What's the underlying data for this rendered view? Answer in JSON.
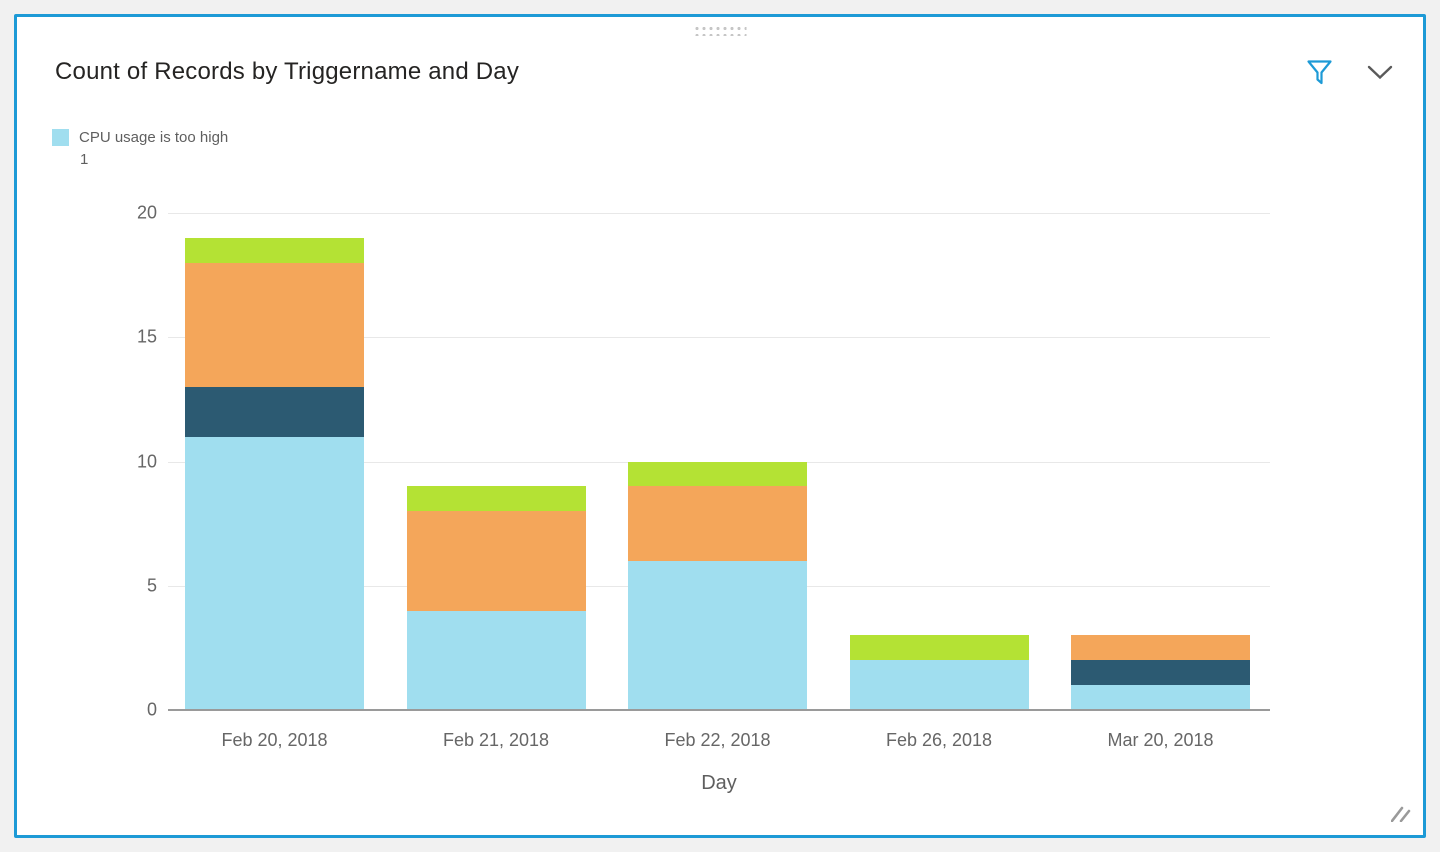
{
  "tile": {
    "title": "Count of Records by Triggername and Day",
    "border_color": "#1d9ad6"
  },
  "header_icons": {
    "filter_icon_color": "#1d9ad6",
    "chevron_icon_color": "#5a5a5a"
  },
  "legend": {
    "items": [
      {
        "label": "CPU usage is too high",
        "color": "#a0deef"
      }
    ],
    "overflow_text": "1"
  },
  "chart_data": {
    "type": "bar",
    "stacked": true,
    "title": "Count of Records by Triggername and Day",
    "categories": [
      "Feb 20, 2018",
      "Feb 21, 2018",
      "Feb 22, 2018",
      "Feb 26, 2018",
      "Mar 20, 2018"
    ],
    "series": [
      {
        "name": "CPU usage is too high",
        "color": "#a0deef",
        "values": [
          11,
          4,
          6,
          2,
          1
        ]
      },
      {
        "name": "",
        "color": "#2c5a72",
        "values": [
          2,
          0,
          0,
          0,
          1
        ]
      },
      {
        "name": "",
        "color": "#f4a65a",
        "values": [
          5,
          4,
          3,
          0,
          1
        ]
      },
      {
        "name": "",
        "color": "#b4e234",
        "values": [
          1,
          1,
          1,
          1,
          0
        ]
      }
    ],
    "xlabel": "Day",
    "ylabel": "",
    "ylim": [
      0,
      20
    ],
    "yticks": [
      0,
      5,
      10,
      15,
      20
    ],
    "grid": true,
    "legend_position": "top-left",
    "gridline_color": "#e8e8e8",
    "axis_line_color": "#9a9a9a",
    "tick_label_color": "#666666"
  }
}
